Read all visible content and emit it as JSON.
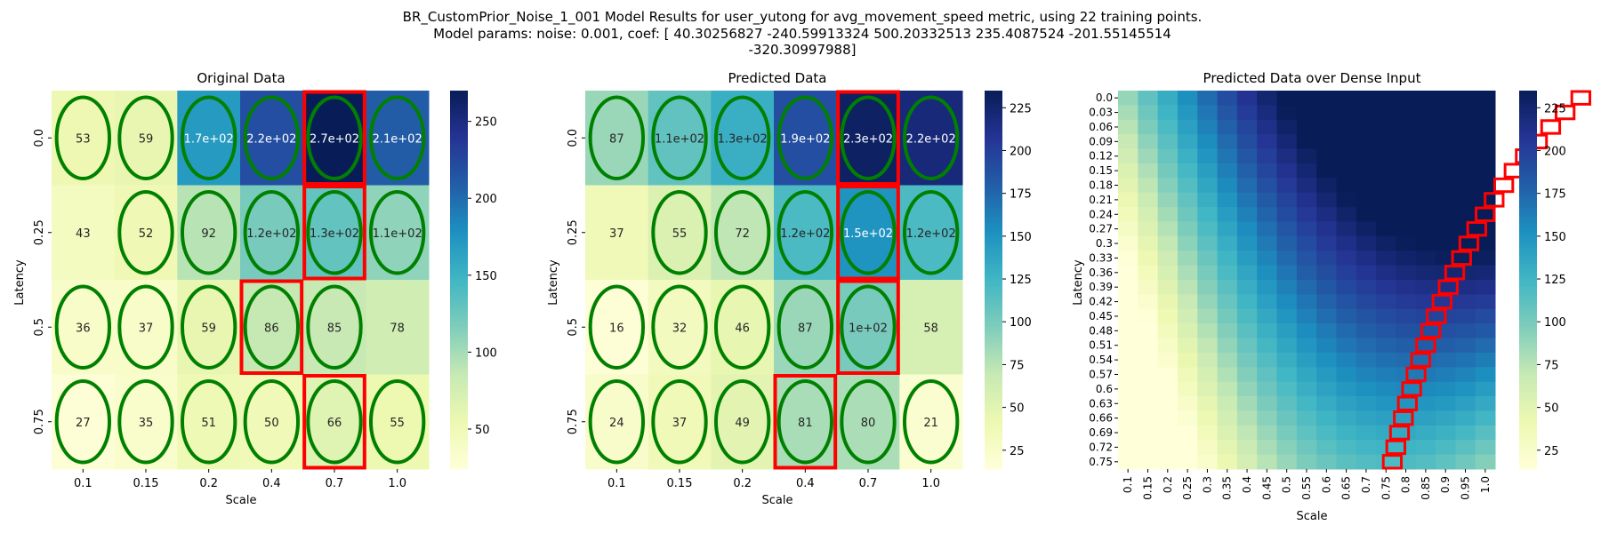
{
  "figure": {
    "suptitle_lines": [
      "BR_CustomPrior_Noise_1_001 Model Results for user_yutong for avg_movement_speed metric, using 22 training points.",
      "Model params: noise: 0.001, coef: [  40.30256827 -240.59913324  500.20332513  235.4087524  -201.55145514",
      "-320.30997988]"
    ],
    "colormap": [
      "#ffffd9",
      "#edf8b1",
      "#c7e9b4",
      "#7fcdbb",
      "#41b6c4",
      "#1d91c0",
      "#225ea8",
      "#253494",
      "#081d58"
    ],
    "ellipse_color": "#008000",
    "highlight_color": "#ff0000"
  },
  "chart_data": [
    {
      "type": "heatmap",
      "title": "Original Data",
      "xlabel": "Scale",
      "ylabel": "Latency",
      "x_ticks": [
        "0.1",
        "0.15",
        "0.2",
        "0.4",
        "0.7",
        "1.0"
      ],
      "y_ticks": [
        "0.0",
        "0.25",
        "0.5",
        "0.75"
      ],
      "values": [
        [
          53,
          59,
          170,
          220,
          270,
          210
        ],
        [
          43,
          52,
          92,
          120,
          130,
          110
        ],
        [
          36,
          37,
          59,
          86,
          85,
          78
        ],
        [
          27,
          35,
          51,
          50,
          66,
          55
        ]
      ],
      "annotations": [
        [
          "53",
          "59",
          "1.7e+02",
          "2.2e+02",
          "2.7e+02",
          "2.1e+02"
        ],
        [
          "43",
          "52",
          "92",
          "1.2e+02",
          "1.3e+02",
          "1.1e+02"
        ],
        [
          "36",
          "37",
          "59",
          "86",
          "85",
          "78"
        ],
        [
          "27",
          "35",
          "51",
          "50",
          "66",
          "55"
        ]
      ],
      "ellipses": [
        [
          true,
          true,
          true,
          true,
          true,
          true
        ],
        [
          false,
          true,
          true,
          true,
          true,
          true
        ],
        [
          true,
          true,
          true,
          true,
          true,
          false
        ],
        [
          true,
          true,
          true,
          true,
          true,
          true
        ]
      ],
      "highlight_cells": [
        [
          0,
          4
        ],
        [
          1,
          4
        ],
        [
          2,
          3
        ],
        [
          3,
          4
        ]
      ],
      "colorbar": {
        "vmin": 24,
        "vmax": 270,
        "ticks": [
          50,
          100,
          150,
          200,
          250
        ]
      }
    },
    {
      "type": "heatmap",
      "title": "Predicted Data",
      "xlabel": "Scale",
      "ylabel": "Latency",
      "x_ticks": [
        "0.1",
        "0.15",
        "0.2",
        "0.4",
        "0.7",
        "1.0"
      ],
      "y_ticks": [
        "0.0",
        "0.25",
        "0.5",
        "0.75"
      ],
      "values": [
        [
          87,
          110,
          130,
          190,
          230,
          220
        ],
        [
          37,
          55,
          72,
          120,
          150,
          120
        ],
        [
          16,
          32,
          46,
          87,
          100,
          58
        ],
        [
          24,
          37,
          49,
          81,
          80,
          21
        ]
      ],
      "annotations": [
        [
          "87",
          "1.1e+02",
          "1.3e+02",
          "1.9e+02",
          "2.3e+02",
          "2.2e+02"
        ],
        [
          "37",
          "55",
          "72",
          "1.2e+02",
          "1.5e+02",
          "1.2e+02"
        ],
        [
          "16",
          "32",
          "46",
          "87",
          "1e+02",
          "58"
        ],
        [
          "24",
          "37",
          "49",
          "81",
          "80",
          "21"
        ]
      ],
      "ellipses": [
        [
          true,
          true,
          true,
          true,
          true,
          true
        ],
        [
          false,
          true,
          true,
          true,
          true,
          true
        ],
        [
          true,
          true,
          true,
          true,
          true,
          false
        ],
        [
          true,
          true,
          true,
          true,
          true,
          true
        ]
      ],
      "highlight_cells": [
        [
          0,
          4
        ],
        [
          1,
          4
        ],
        [
          2,
          4
        ],
        [
          3,
          3
        ]
      ],
      "colorbar": {
        "vmin": 14,
        "vmax": 235,
        "ticks": [
          25,
          50,
          75,
          100,
          125,
          150,
          175,
          200,
          225
        ]
      }
    },
    {
      "type": "heatmap",
      "title": "Predicted Data over Dense Input",
      "xlabel": "Scale",
      "ylabel": "Latency",
      "x_ticks": [
        "0.1",
        "0.15",
        "0.2",
        "0.25",
        "0.3",
        "0.35",
        "0.4",
        "0.45",
        "0.5",
        "0.55",
        "0.6",
        "0.65",
        "0.7",
        "0.75",
        "0.8",
        "0.85",
        "0.9",
        "0.95",
        "1.0"
      ],
      "y_ticks": [
        "0.0",
        "0.03",
        "0.06",
        "0.09",
        "0.12",
        "0.15",
        "0.18",
        "0.21",
        "0.24",
        "0.27",
        "0.3",
        "0.33",
        "0.36",
        "0.39",
        "0.42",
        "0.45",
        "0.48",
        "0.51",
        "0.54",
        "0.57",
        "0.6",
        "0.63",
        "0.66",
        "0.69",
        "0.72",
        "0.75"
      ],
      "coef": [
        40.30256827,
        -240.59913324,
        500.20332513,
        235.4087524,
        -201.55145514,
        -320.30997988
      ],
      "colorbar": {
        "vmin": 14,
        "vmax": 235,
        "ticks": [
          25,
          50,
          75,
          100,
          125,
          150,
          175,
          200,
          225
        ]
      }
    }
  ]
}
